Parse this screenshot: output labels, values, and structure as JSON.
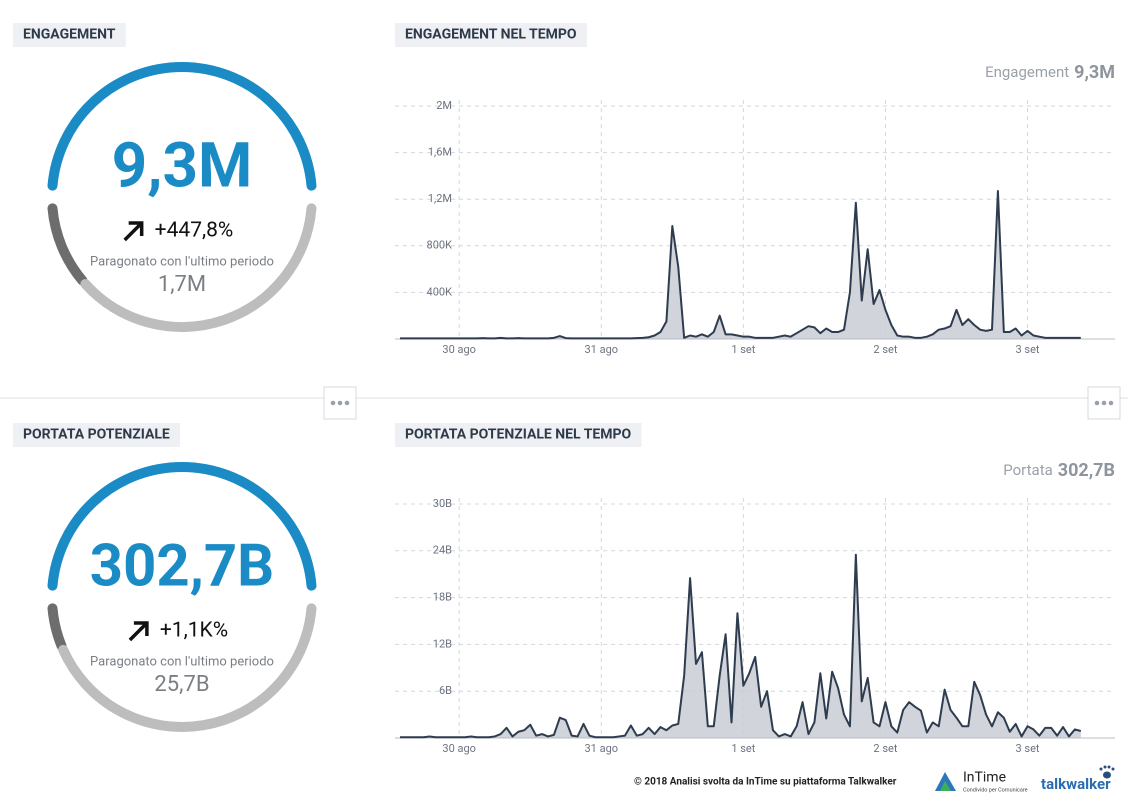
{
  "panels": [
    {
      "title": "ENGAGEMENT",
      "value": "9,3M",
      "change": "+447,8%",
      "comparison": "Paragonato con l'ultimo periodo",
      "previous": "1,7M"
    },
    {
      "title": "PORTATA POTENZIALE",
      "value": "302,7B",
      "change": "+1,1K%",
      "comparison": "Paragonato con l'ultimo periodo",
      "previous": "25,7B"
    }
  ],
  "chart_data": [
    {
      "type": "area",
      "title": "ENGAGEMENT NEL TEMPO",
      "summary_label": "Engagement",
      "summary_value": "9,3M",
      "categories": [
        null,
        null,
        null,
        null,
        null,
        null,
        null,
        null,
        null,
        null,
        "30 ago",
        null,
        null,
        null,
        null,
        null,
        null,
        null,
        null,
        null,
        null,
        null,
        null,
        null,
        null,
        null,
        null,
        null,
        null,
        null,
        null,
        null,
        null,
        null,
        "31 ago",
        null,
        null,
        null,
        null,
        null,
        null,
        null,
        null,
        null,
        null,
        null,
        null,
        null,
        null,
        null,
        null,
        null,
        null,
        null,
        null,
        null,
        null,
        null,
        "1 set",
        null,
        null,
        null,
        null,
        null,
        null,
        null,
        null,
        null,
        null,
        null,
        null,
        null,
        null,
        null,
        null,
        null,
        null,
        null,
        null,
        null,
        null,
        null,
        "2 set",
        null,
        null,
        null,
        null,
        null,
        null,
        null,
        null,
        null,
        null,
        null,
        null,
        null,
        null,
        null,
        null,
        null,
        null,
        null,
        null,
        null,
        null,
        null,
        "3 set",
        null,
        null,
        null,
        null,
        null,
        null,
        null,
        null,
        null
      ],
      "values": [
        5000,
        5000,
        5000,
        5000,
        5000,
        5000,
        5000,
        5000,
        5000,
        5000,
        5000,
        5000,
        5000,
        5000,
        8000,
        5000,
        5000,
        10000,
        5000,
        5000,
        8000,
        5000,
        5000,
        5000,
        5000,
        5000,
        10000,
        25000,
        8000,
        5000,
        5000,
        5000,
        5000,
        5000,
        5000,
        5000,
        5000,
        5000,
        5000,
        5000,
        8000,
        10000,
        15000,
        30000,
        60000,
        150000,
        970000,
        620000,
        10000,
        30000,
        20000,
        40000,
        20000,
        60000,
        200000,
        40000,
        40000,
        30000,
        20000,
        20000,
        10000,
        10000,
        10000,
        10000,
        20000,
        30000,
        20000,
        50000,
        80000,
        110000,
        100000,
        50000,
        90000,
        60000,
        60000,
        80000,
        400000,
        1170000,
        330000,
        770000,
        300000,
        420000,
        250000,
        120000,
        30000,
        20000,
        20000,
        10000,
        10000,
        20000,
        40000,
        80000,
        90000,
        110000,
        250000,
        120000,
        170000,
        120000,
        80000,
        70000,
        80000,
        1270000,
        60000,
        60000,
        90000,
        30000,
        70000,
        30000,
        20000,
        10000,
        10000,
        10000,
        10000,
        10000,
        10000,
        10000
      ],
      "color": "#2e3c4f",
      "fill_color": "#c9cdd4",
      "ylim": [
        0,
        2000000
      ],
      "yticks": [
        {
          "value": 400000,
          "label": "400K"
        },
        {
          "value": 800000,
          "label": "800K"
        },
        {
          "value": 1200000,
          "label": "1,2M"
        },
        {
          "value": 1600000,
          "label": "1,6M"
        },
        {
          "value": 2000000,
          "label": "2M"
        }
      ],
      "grid": true
    },
    {
      "type": "area",
      "title": "PORTATA POTENZIALE NEL TEMPO",
      "summary_label": "Portata",
      "summary_value": "302,7B",
      "categories": [
        null,
        null,
        null,
        null,
        null,
        null,
        null,
        null,
        null,
        null,
        "30 ago",
        null,
        null,
        null,
        null,
        null,
        null,
        null,
        null,
        null,
        null,
        null,
        null,
        null,
        null,
        null,
        null,
        null,
        null,
        null,
        null,
        null,
        null,
        null,
        "31 ago",
        null,
        null,
        null,
        null,
        null,
        null,
        null,
        null,
        null,
        null,
        null,
        null,
        null,
        null,
        null,
        null,
        null,
        null,
        null,
        null,
        null,
        null,
        null,
        "1 set",
        null,
        null,
        null,
        null,
        null,
        null,
        null,
        null,
        null,
        null,
        null,
        null,
        null,
        null,
        null,
        null,
        null,
        null,
        null,
        null,
        null,
        null,
        null,
        "2 set",
        null,
        null,
        null,
        null,
        null,
        null,
        null,
        null,
        null,
        null,
        null,
        null,
        null,
        null,
        null,
        null,
        null,
        null,
        null,
        null,
        null,
        null,
        null,
        "3 set",
        null,
        null,
        null,
        null,
        null,
        null,
        null,
        null,
        null
      ],
      "values": [
        100000000.0,
        100000000.0,
        100000000.0,
        100000000.0,
        100000000.0,
        200000000.0,
        100000000.0,
        100000000.0,
        100000000.0,
        100000000.0,
        100000000.0,
        100000000.0,
        200000000.0,
        100000000.0,
        100000000.0,
        100000000.0,
        200000000.0,
        500000000.0,
        1300000000.0,
        200000000.0,
        800000000.0,
        1000000000.0,
        1700000000.0,
        300000000.0,
        500000000.0,
        200000000.0,
        400000000.0,
        2600000000.0,
        2300000000.0,
        300000000.0,
        200000000.0,
        1800000000.0,
        300000000.0,
        100000000.0,
        100000000.0,
        100000000.0,
        100000000.0,
        200000000.0,
        300000000.0,
        1600000000.0,
        300000000.0,
        500000000.0,
        1300000000.0,
        500000000.0,
        1400000000.0,
        1000000000.0,
        1600000000.0,
        1800000000.0,
        8000000000.0,
        20500000000.0,
        9500000000.0,
        11000000000.0,
        1500000000.0,
        1500000000.0,
        8000000000.0,
        13300000000.0,
        2000000000.0,
        16000000000.0,
        6700000000.0,
        8300000000.0,
        10400000000.0,
        4000000000.0,
        6000000000.0,
        1000000000.0,
        200000000.0,
        500000000.0,
        200000000.0,
        1500000000.0,
        4600000000.0,
        500000000.0,
        2000000000.0,
        8300000000.0,
        2500000000.0,
        8500000000.0,
        6400000000.0,
        3000000000.0,
        1500000000.0,
        23500000000.0,
        4700000000.0,
        7700000000.0,
        2000000000.0,
        1500000000.0,
        4600000000.0,
        1500000000.0,
        700000000.0,
        3600000000.0,
        4600000000.0,
        4000000000.0,
        3500000000.0,
        700000000.0,
        2000000000.0,
        1500000000.0,
        6200000000.0,
        3600000000.0,
        2600000000.0,
        1500000000.0,
        1500000000.0,
        7200000000.0,
        5500000000.0,
        3000000000.0,
        1500000000.0,
        3300000000.0,
        2600000000.0,
        800000000.0,
        1800000000.0,
        200000000.0,
        1500000000.0,
        1100000000.0,
        300000000.0,
        1300000000.0,
        1300000000.0,
        300000000.0,
        1400000000.0,
        200000000.0,
        1100000000.0,
        900000000.0
      ],
      "color": "#2e3c4f",
      "fill_color": "#c9cdd4",
      "ylim": [
        0,
        30000000000
      ],
      "yticks": [
        {
          "value": 6000000000,
          "label": "6B"
        },
        {
          "value": 12000000000,
          "label": "12B"
        },
        {
          "value": 18000000000,
          "label": "18B"
        },
        {
          "value": 24000000000,
          "label": "24B"
        },
        {
          "value": 30000000000,
          "label": "30B"
        }
      ],
      "grid": true
    }
  ],
  "footer": {
    "credit": "© 2018  Analisi svolta da InTime su piattaforma Talkwalker",
    "brand": "InTime",
    "tagline": "Condivido per Comunicare",
    "partner": "talkwalker"
  }
}
